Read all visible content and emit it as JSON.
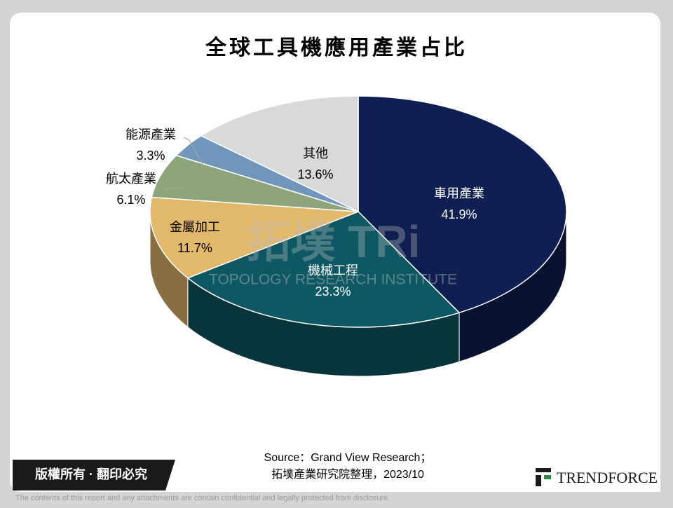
{
  "chart_data": {
    "type": "pie",
    "title": "全球工具機應用產業占比",
    "categories": [
      "車用產業",
      "機械工程",
      "金屬加工",
      "航太產業",
      "能源產業",
      "其他"
    ],
    "values": [
      41.9,
      23.3,
      11.7,
      6.1,
      3.3,
      13.6
    ],
    "value_labels": [
      "41.9%",
      "23.3%",
      "11.7%",
      "6.1%",
      "3.3%",
      "13.6%"
    ],
    "colors": [
      "#0f1f52",
      "#0d5863",
      "#e2b86a",
      "#8ea57b",
      "#7096bb",
      "#d9d9d9"
    ],
    "three_d": true
  },
  "watermark": {
    "logo": "拓墣 TRi",
    "name": "TOPOLOGY RESEARCH INSTITUTE"
  },
  "source": [
    "Source：Grand View Research；",
    "拓墣產業研究院整理，2023/10"
  ],
  "footer": {
    "copyright": "版權所有 · 翻印必究",
    "brand": "TRENDFORCE",
    "disclaimer": "The contents of this report and any attachments are contain confidential and legally protected from disclosure."
  }
}
